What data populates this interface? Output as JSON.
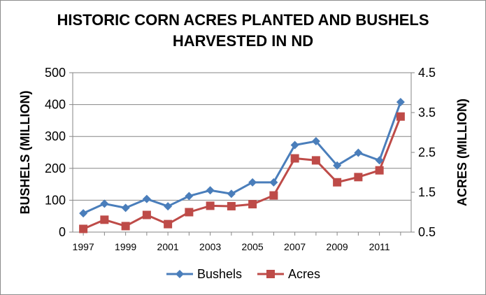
{
  "chart_data": {
    "type": "line",
    "title_line1": "HISTORIC CORN ACRES PLANTED AND BUSHELS",
    "title_line2": "HARVESTED IN ND",
    "y_left_label": "BUSHELS (MILLION)",
    "y_right_label": "ACRES (MILLION)",
    "y_left_range": [
      0,
      500
    ],
    "y_left_ticks": [
      "0",
      "100",
      "200",
      "300",
      "400",
      "500"
    ],
    "y_right_range": [
      0.5,
      4.5
    ],
    "y_right_ticks": [
      "0.5",
      "1.5",
      "2.5",
      "3.5",
      "4.5"
    ],
    "x_tick_labels": [
      "1997",
      "1999",
      "2001",
      "2003",
      "2005",
      "2007",
      "2009",
      "2011"
    ],
    "x": [
      1997,
      1998,
      1999,
      2000,
      2001,
      2002,
      2003,
      2004,
      2005,
      2006,
      2007,
      2008,
      2009,
      2010,
      2011,
      2012
    ],
    "series": [
      {
        "name": "Bushels",
        "axis": "left",
        "color": "#4a7ebb",
        "marker": "diamond",
        "values": [
          59,
          89,
          76,
          104,
          81,
          113,
          131,
          120,
          156,
          156,
          273,
          285,
          209,
          249,
          225,
          408
        ]
      },
      {
        "name": "Acres",
        "axis": "right",
        "color": "#be4b48",
        "marker": "square",
        "values": [
          0.58,
          0.81,
          0.65,
          0.93,
          0.7,
          1.0,
          1.16,
          1.15,
          1.2,
          1.42,
          2.35,
          2.3,
          1.75,
          1.88,
          2.05,
          3.4
        ]
      }
    ],
    "grid": true,
    "legend_position": "bottom"
  }
}
